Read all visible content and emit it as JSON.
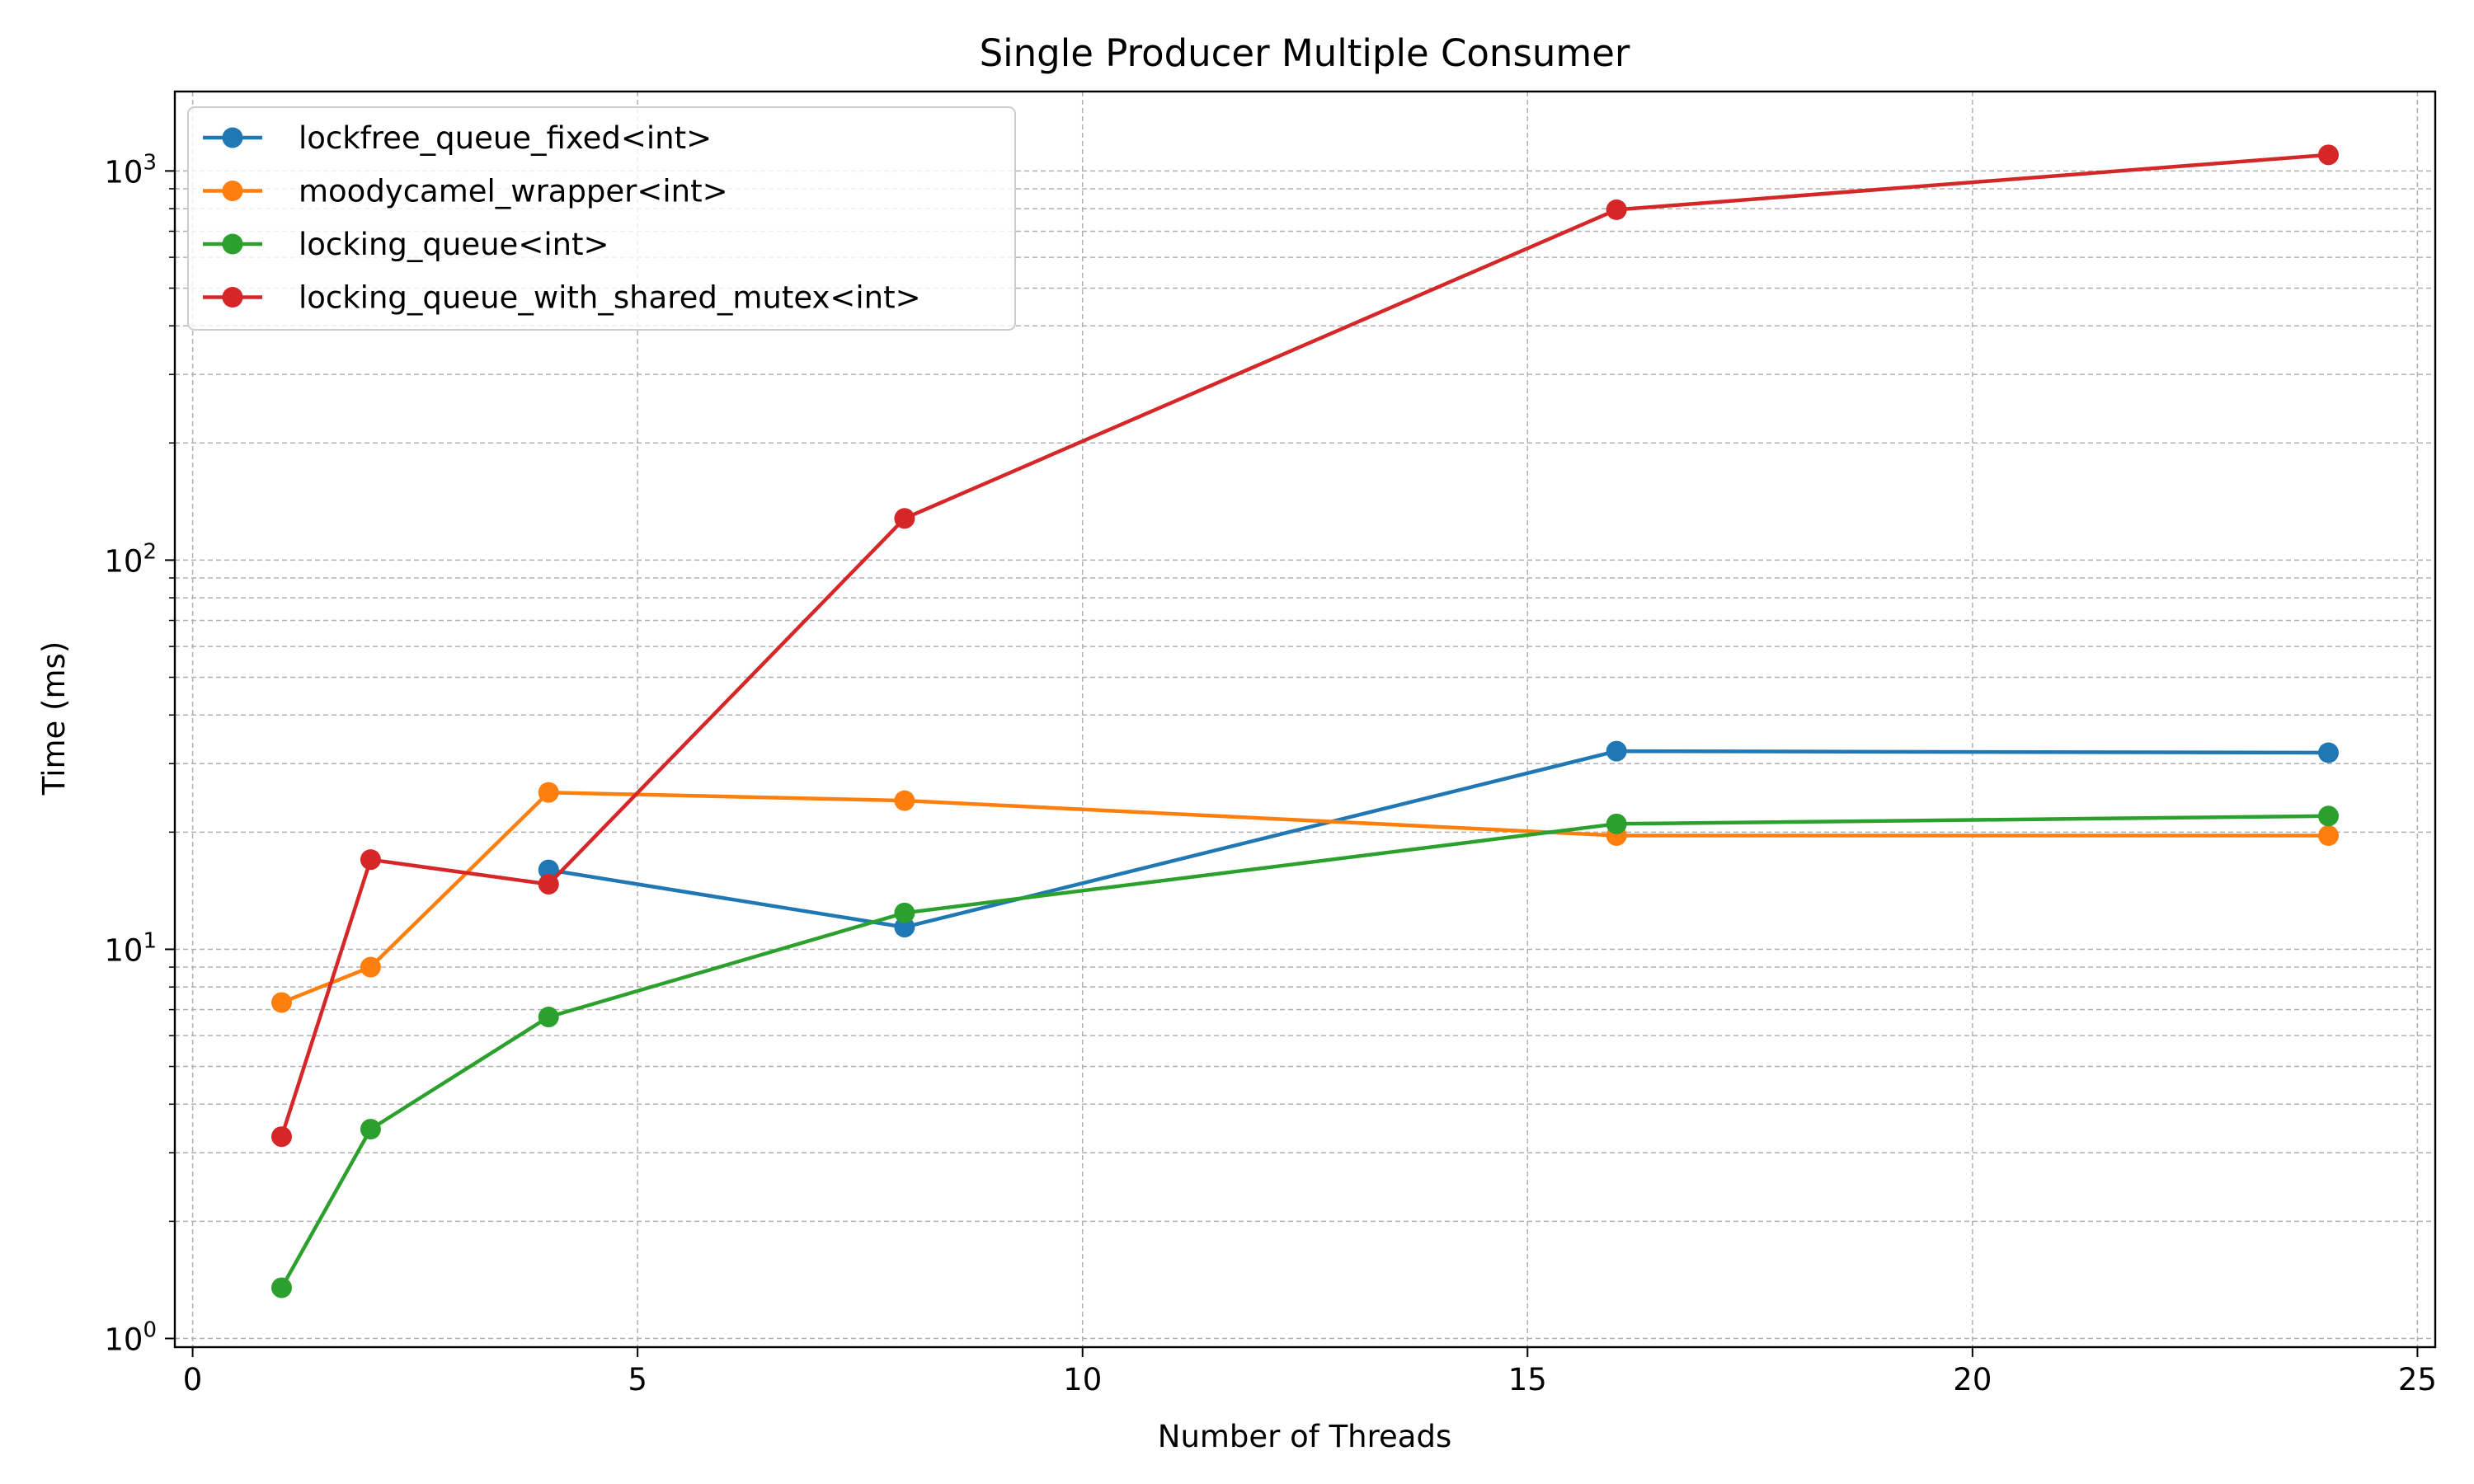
{
  "chart_data": {
    "type": "line",
    "title": "Single Producer Multiple Consumer",
    "xlabel": "Number of Threads",
    "ylabel": "Time (ms)",
    "x_scale": "linear",
    "y_scale": "log",
    "xlim": [
      -0.2,
      25.2
    ],
    "ylim": [
      0.95,
      1600
    ],
    "x_ticks": [
      0,
      5,
      10,
      15,
      20,
      25
    ],
    "x_tick_labels": [
      "0",
      "5",
      "10",
      "15",
      "20",
      "25"
    ],
    "y_ticks": [
      1,
      10,
      100,
      1000
    ],
    "y_tick_bases": [
      "10",
      "10",
      "10",
      "10"
    ],
    "y_tick_exponents": [
      "0",
      "1",
      "2",
      "3"
    ],
    "grid": true,
    "legend_position": "upper-left",
    "series": [
      {
        "name": "lockfree_queue_fixed<int>",
        "color": "#1f77b4",
        "x": [
          4,
          8,
          16,
          24
        ],
        "y": [
          16.0,
          11.4,
          32.3,
          32.0
        ]
      },
      {
        "name": "moodycamel_wrapper<int>",
        "color": "#ff7f0e",
        "x": [
          1,
          2,
          4,
          8,
          16,
          24
        ],
        "y": [
          7.3,
          9.0,
          25.3,
          24.1,
          19.6,
          19.6
        ]
      },
      {
        "name": "locking_queue<int>",
        "color": "#2ca02c",
        "x": [
          1,
          2,
          4,
          8,
          16,
          24
        ],
        "y": [
          1.35,
          3.45,
          6.7,
          12.4,
          21.0,
          22.0
        ]
      },
      {
        "name": "locking_queue_with_shared_mutex<int>",
        "color": "#d62728",
        "x": [
          1,
          2,
          4,
          8,
          16,
          24
        ],
        "y": [
          3.3,
          17.0,
          14.7,
          128,
          795,
          1100
        ]
      }
    ]
  }
}
